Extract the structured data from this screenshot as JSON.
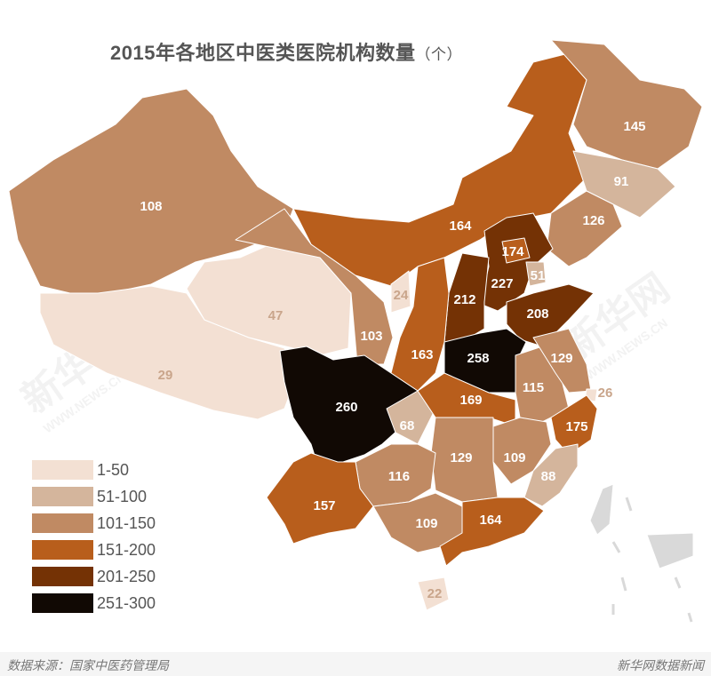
{
  "title": "2015年各地区中医类医院机构数量",
  "title_unit": "（个）",
  "legend": [
    {
      "label": "1-50",
      "color": "#f3e0d3"
    },
    {
      "label": "51-100",
      "color": "#d4b59c"
    },
    {
      "label": "101-150",
      "color": "#c08a63"
    },
    {
      "label": "151-200",
      "color": "#b85e1c"
    },
    {
      "label": "201-250",
      "color": "#743205"
    },
    {
      "label": "251-300",
      "color": "#110904"
    }
  ],
  "no_data_color": "#d9d9d9",
  "regions": [
    {
      "value": "108",
      "bin": 2
    },
    {
      "value": "29",
      "bin": 0
    },
    {
      "value": "47",
      "bin": 0
    },
    {
      "value": "103",
      "bin": 2
    },
    {
      "value": "164",
      "bin": 3
    },
    {
      "value": "145",
      "bin": 2
    },
    {
      "value": "91",
      "bin": 1
    },
    {
      "value": "126",
      "bin": 2
    },
    {
      "value": "227",
      "bin": 4
    },
    {
      "value": "174",
      "bin": 3
    },
    {
      "value": "51",
      "bin": 1
    },
    {
      "value": "212",
      "bin": 4
    },
    {
      "value": "208",
      "bin": 4
    },
    {
      "value": "258",
      "bin": 5
    },
    {
      "value": "24",
      "bin": 0
    },
    {
      "value": "163",
      "bin": 3
    },
    {
      "value": "260",
      "bin": 5
    },
    {
      "value": "68",
      "bin": 1
    },
    {
      "value": "169",
      "bin": 3
    },
    {
      "value": "115",
      "bin": 2
    },
    {
      "value": "129",
      "bin": 2
    },
    {
      "value": "26",
      "bin": 0
    },
    {
      "value": "175",
      "bin": 3
    },
    {
      "value": "109",
      "bin": 2
    },
    {
      "value": "129",
      "bin": 2
    },
    {
      "value": "116",
      "bin": 2
    },
    {
      "value": "88",
      "bin": 1
    },
    {
      "value": "157",
      "bin": 3
    },
    {
      "value": "109",
      "bin": 2
    },
    {
      "value": "164",
      "bin": 3
    },
    {
      "value": "22",
      "bin": 0
    }
  ],
  "watermark": {
    "cn": "新华网",
    "en": "WWW.NEWS.CN"
  },
  "footer": {
    "source": "数据来源：国家中医药管理局",
    "brand": "新华网数据新闻"
  }
}
